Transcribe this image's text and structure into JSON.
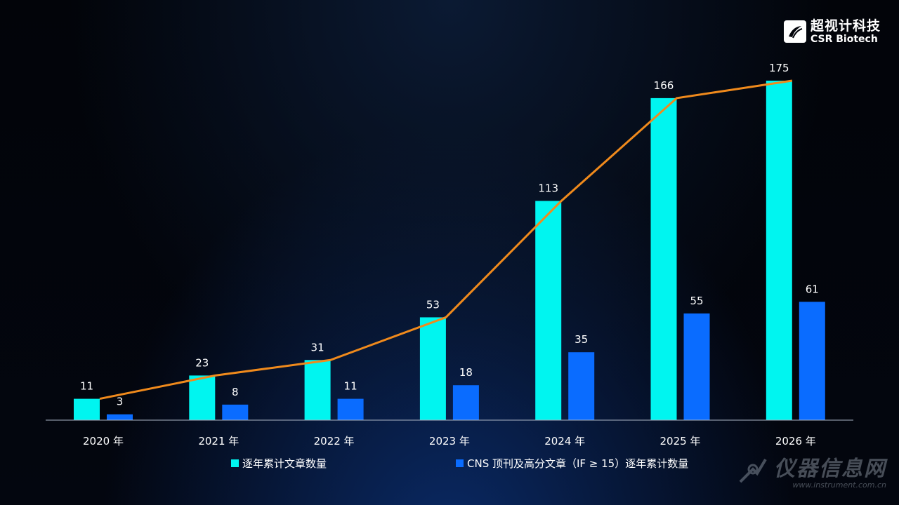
{
  "chart_data": {
    "type": "bar",
    "categories": [
      "2020 年",
      "2021 年",
      "2022 年",
      "2023 年",
      "2024 年",
      "2025 年",
      "2026 年"
    ],
    "series": [
      {
        "name": "逐年累计文章数量",
        "values": [
          11,
          23,
          31,
          53,
          113,
          166,
          175
        ],
        "color": "#00f5f0"
      },
      {
        "name": "CNS 顶刊及高分文章（IF ≥ 15）逐年累计数量",
        "values": [
          3,
          8,
          11,
          18,
          35,
          55,
          61
        ],
        "color": "#0a6cff"
      }
    ],
    "line": {
      "series_index": 0,
      "color": "#f08a1c"
    },
    "ylim": [
      0,
      175
    ],
    "grid": false,
    "legend_position": "bottom"
  },
  "logo": {
    "cn": "超视计科技",
    "en": "CSR Biotech"
  },
  "watermark": {
    "cn": "仪器信息网",
    "url": "www.instrument.com.cn"
  }
}
